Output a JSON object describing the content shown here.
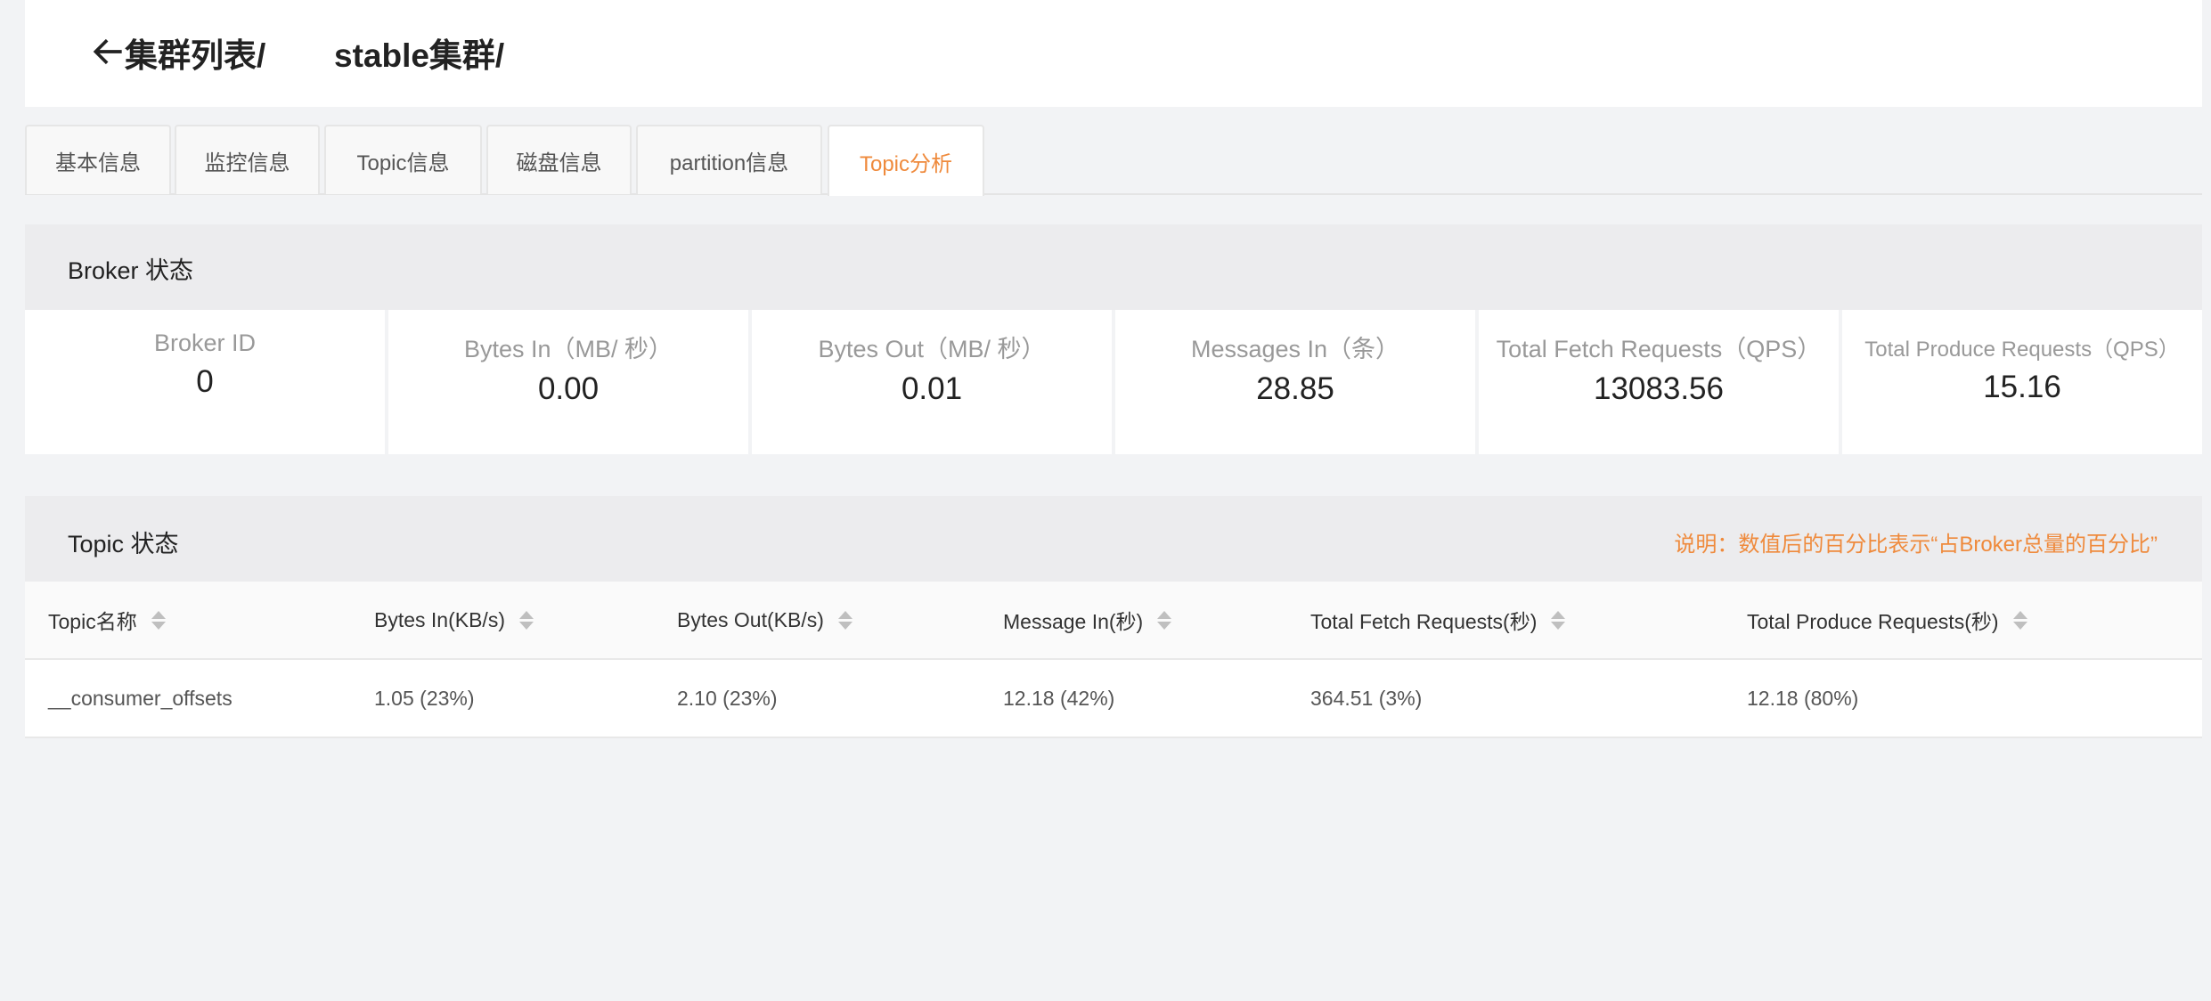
{
  "header": {
    "breadcrumb": [
      "集群列表/",
      "stable集群/"
    ]
  },
  "tabs": [
    "基本信息",
    "监控信息",
    "Topic信息",
    "磁盘信息",
    "partition信息",
    "Topic分析"
  ],
  "active_tab": "Topic分析",
  "broker": {
    "title": "Broker 状态",
    "cards": [
      {
        "label": "Broker ID",
        "value": "0"
      },
      {
        "label": "Bytes In（MB/ 秒）",
        "value": "0.00"
      },
      {
        "label": "Bytes Out（MB/ 秒）",
        "value": "0.01"
      },
      {
        "label": "Messages In（条）",
        "value": "28.85"
      },
      {
        "label": "Total Fetch Requests（QPS）",
        "value": "13083.56"
      },
      {
        "label": "Total Produce Requests（QPS）",
        "value": "15.16"
      }
    ]
  },
  "topic": {
    "title": "Topic 状态",
    "note": "说明：数值后的百分比表示“占Broker总量的百分比”",
    "columns": [
      "Topic名称",
      "Bytes In(KB/s)",
      "Bytes Out(KB/s)",
      "Message In(秒)",
      "Total Fetch Requests(秒)",
      "Total Produce Requests(秒)"
    ],
    "rows": [
      [
        "__consumer_offsets",
        "1.05 (23%)",
        "2.10 (23%)",
        "12.18 (42%)",
        "364.51 (3%)",
        "12.18 (80%)"
      ]
    ]
  },
  "colors": {
    "accent": "#ef8a3c"
  }
}
